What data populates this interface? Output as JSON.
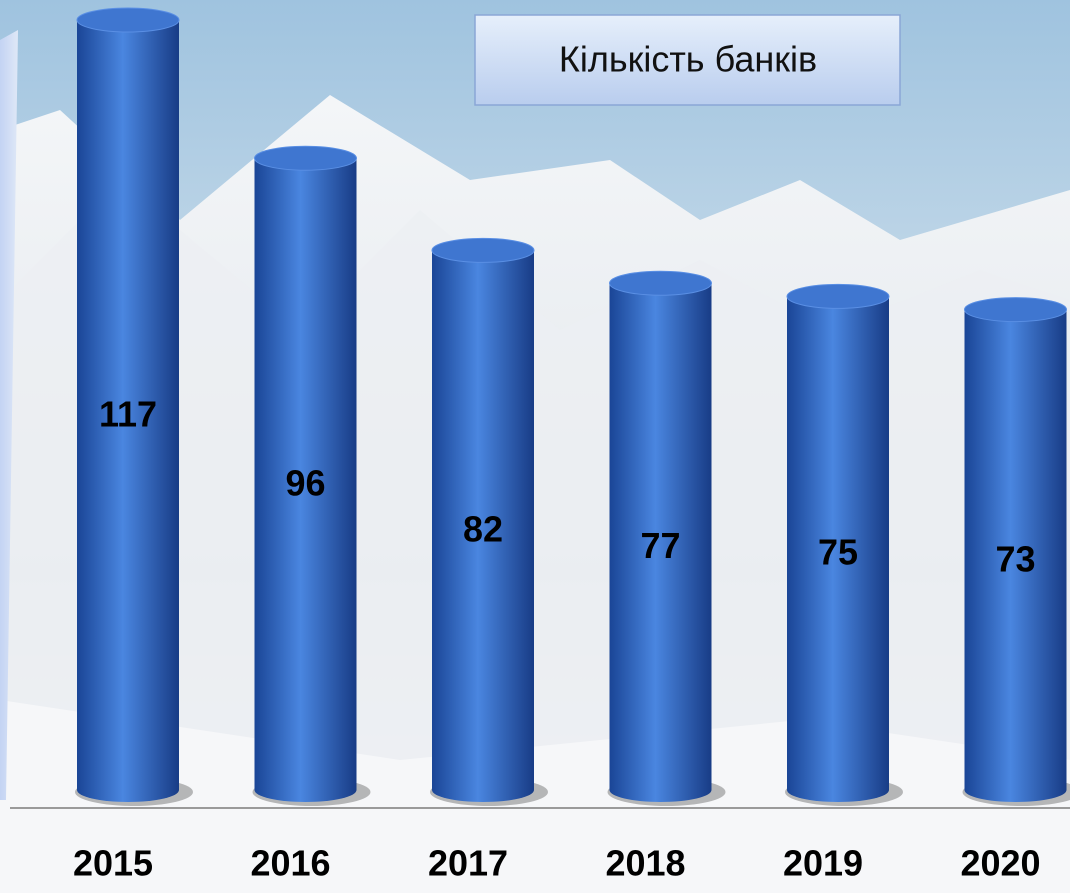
{
  "chart_data": {
    "type": "bar",
    "title": "Кількість банків",
    "categories": [
      "2015",
      "2016",
      "2017",
      "2018",
      "2019",
      "2020"
    ],
    "values": [
      117,
      96,
      82,
      77,
      75,
      73
    ],
    "color": "#2f63c0"
  }
}
